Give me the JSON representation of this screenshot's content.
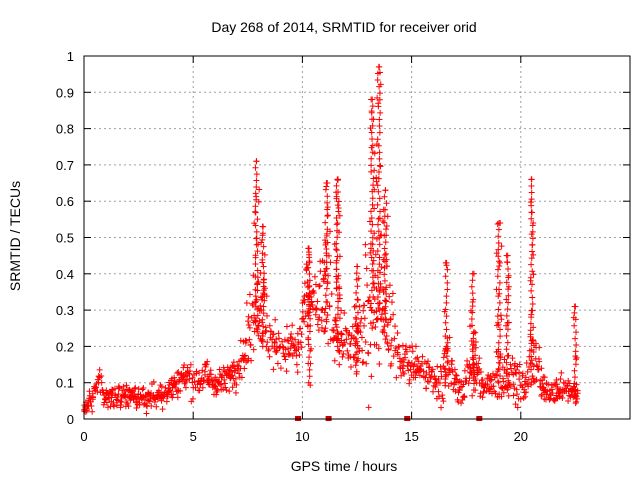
{
  "chart_data": {
    "type": "scatter",
    "title": "Day 268 of 2014, SRMTID for receiver orid",
    "xlabel": "GPS time / hours",
    "ylabel": "SRMTID / TECUs",
    "xlim": [
      0,
      25
    ],
    "ylim": [
      0,
      1
    ],
    "x_ticks": [
      0,
      5,
      10,
      15,
      20
    ],
    "x_tick_labels": [
      "0",
      "5",
      "10",
      "15",
      "20"
    ],
    "y_ticks": [
      0,
      0.1,
      0.2,
      0.3,
      0.4,
      0.5,
      0.6,
      0.7,
      0.8,
      0.9,
      1
    ],
    "y_tick_labels": [
      "0",
      "0.1",
      "0.2",
      "0.3",
      "0.4",
      "0.5",
      "0.6",
      "0.7",
      "0.8",
      "0.9",
      "1"
    ],
    "grid": true,
    "legend": "none",
    "marker": "plus",
    "series_color": "#ff0000",
    "baseline_marker_color": "#cc0000",
    "baseline_markers_x": [
      9.8,
      11.2,
      14.8,
      18.1
    ],
    "envelope": [
      [
        0.0,
        0.025,
        0.02
      ],
      [
        0.4,
        0.06,
        0.03
      ],
      [
        0.7,
        0.11,
        0.04
      ],
      [
        1.0,
        0.06,
        0.03
      ],
      [
        1.5,
        0.06,
        0.03
      ],
      [
        2.0,
        0.065,
        0.03
      ],
      [
        2.5,
        0.06,
        0.03
      ],
      [
        3.0,
        0.06,
        0.03
      ],
      [
        3.5,
        0.07,
        0.035
      ],
      [
        4.0,
        0.085,
        0.035
      ],
      [
        4.5,
        0.12,
        0.04
      ],
      [
        5.0,
        0.1,
        0.035
      ],
      [
        5.5,
        0.12,
        0.04
      ],
      [
        6.0,
        0.1,
        0.035
      ],
      [
        6.5,
        0.11,
        0.03
      ],
      [
        7.0,
        0.14,
        0.04
      ],
      [
        7.4,
        0.19,
        0.05
      ],
      [
        7.8,
        0.34,
        0.13
      ],
      [
        8.2,
        0.3,
        0.1
      ],
      [
        8.6,
        0.2,
        0.06
      ],
      [
        9.0,
        0.2,
        0.05
      ],
      [
        9.4,
        0.2,
        0.05
      ],
      [
        9.8,
        0.18,
        0.06
      ],
      [
        10.2,
        0.34,
        0.1
      ],
      [
        10.6,
        0.3,
        0.08
      ],
      [
        11.0,
        0.36,
        0.13
      ],
      [
        11.4,
        0.3,
        0.14
      ],
      [
        11.8,
        0.22,
        0.08
      ],
      [
        12.2,
        0.19,
        0.06
      ],
      [
        12.6,
        0.22,
        0.08
      ],
      [
        13.0,
        0.3,
        0.2
      ],
      [
        13.4,
        0.34,
        0.2
      ],
      [
        13.8,
        0.34,
        0.16
      ],
      [
        14.2,
        0.2,
        0.08
      ],
      [
        14.6,
        0.15,
        0.05
      ],
      [
        15.0,
        0.15,
        0.05
      ],
      [
        15.4,
        0.13,
        0.05
      ],
      [
        15.8,
        0.12,
        0.04
      ],
      [
        16.2,
        0.1,
        0.04
      ],
      [
        16.6,
        0.15,
        0.1
      ],
      [
        17.0,
        0.1,
        0.04
      ],
      [
        17.4,
        0.07,
        0.03
      ],
      [
        17.8,
        0.2,
        0.1
      ],
      [
        18.2,
        0.09,
        0.03
      ],
      [
        18.6,
        0.09,
        0.03
      ],
      [
        19.0,
        0.15,
        0.1
      ],
      [
        19.4,
        0.1,
        0.04
      ],
      [
        19.8,
        0.12,
        0.06
      ],
      [
        20.2,
        0.08,
        0.03
      ],
      [
        20.6,
        0.2,
        0.12
      ],
      [
        21.0,
        0.08,
        0.03
      ],
      [
        21.4,
        0.08,
        0.03
      ],
      [
        21.8,
        0.08,
        0.03
      ],
      [
        22.2,
        0.08,
        0.03
      ],
      [
        22.6,
        0.07,
        0.03
      ]
    ],
    "peaks": [
      {
        "x": 7.9,
        "y_top": 0.71,
        "y_bottom": 0.25
      },
      {
        "x": 8.2,
        "y_top": 0.53,
        "y_bottom": 0.2
      },
      {
        "x": 10.3,
        "y_top": 0.47,
        "y_bottom": 0.1
      },
      {
        "x": 11.1,
        "y_top": 0.65,
        "y_bottom": 0.25
      },
      {
        "x": 11.6,
        "y_top": 0.66,
        "y_bottom": 0.2
      },
      {
        "x": 12.5,
        "y_top": 0.42,
        "y_bottom": 0.13
      },
      {
        "x": 13.2,
        "y_top": 0.88,
        "y_bottom": 0.3
      },
      {
        "x": 13.5,
        "y_top": 0.97,
        "y_bottom": 0.3
      },
      {
        "x": 13.8,
        "y_top": 0.63,
        "y_bottom": 0.22
      },
      {
        "x": 16.6,
        "y_top": 0.43,
        "y_bottom": 0.1
      },
      {
        "x": 17.8,
        "y_top": 0.4,
        "y_bottom": 0.08
      },
      {
        "x": 19.0,
        "y_top": 0.54,
        "y_bottom": 0.1
      },
      {
        "x": 19.4,
        "y_top": 0.45,
        "y_bottom": 0.1
      },
      {
        "x": 20.5,
        "y_top": 0.66,
        "y_bottom": 0.1
      },
      {
        "x": 22.5,
        "y_top": 0.31,
        "y_bottom": 0.08
      }
    ]
  }
}
